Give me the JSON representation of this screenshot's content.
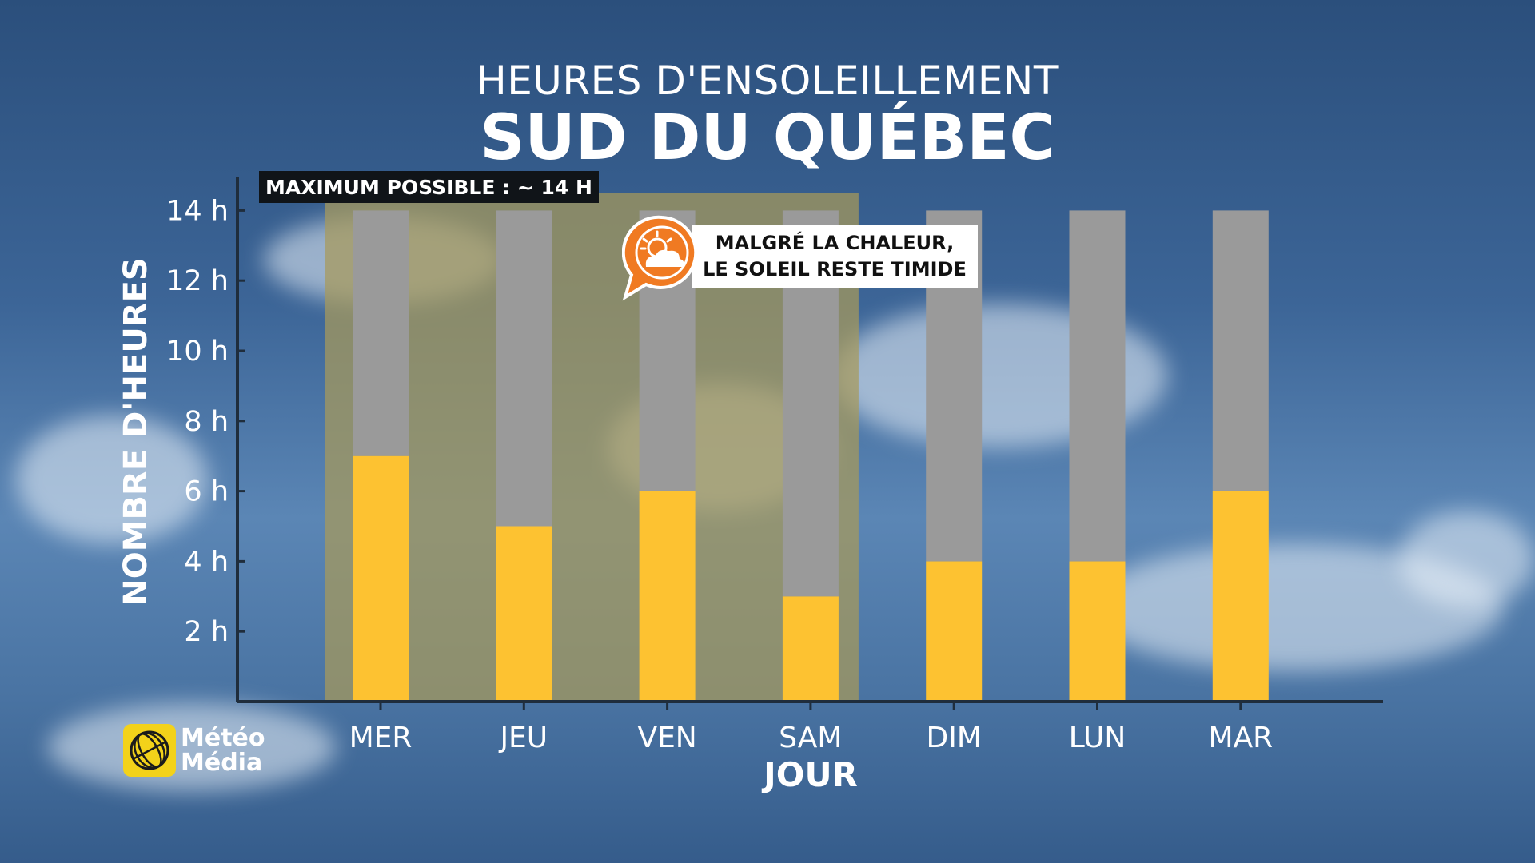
{
  "title_top": "HEURES D'ENSOLEILLEMENT",
  "title_main": "SUD DU QUÉBEC",
  "max_label": "MAXIMUM POSSIBLE : ~ 14 H",
  "annotation": {
    "line1": "MALGRÉ LA CHALEUR,",
    "line2": "LE SOLEIL RESTE TIMIDE",
    "icon": "sun-behind-cloud-icon"
  },
  "logo": {
    "line1": "Météo",
    "line2": "Média",
    "icon": "globe-icon"
  },
  "colors": {
    "sun": "#fdc231",
    "max": "#9a9a9a",
    "highlight": "#a89a5a",
    "badge": "#f07a22",
    "logo": "#f3d21a"
  },
  "chart_data": {
    "type": "bar",
    "stacked": true,
    "ylabel": "NOMBRE D'HEURES",
    "xlabel": "JOUR",
    "categories": [
      "MER",
      "JEU",
      "VEN",
      "SAM",
      "DIM",
      "LUN",
      "MAR"
    ],
    "series": [
      {
        "values": [
          7,
          5,
          6,
          3,
          4,
          4,
          6
        ],
        "color": "#fdc231"
      },
      {
        "values": [
          7,
          9,
          8,
          11,
          10,
          10,
          8
        ],
        "color": "#9a9a9a"
      }
    ],
    "total_possible": 14,
    "ylim": [
      0,
      14
    ],
    "yticks": [
      "2 h",
      "4 h",
      "6 h",
      "8 h",
      "10 h",
      "12 h",
      "14 h"
    ],
    "ytick_values": [
      2,
      4,
      6,
      8,
      10,
      12,
      14
    ],
    "highlight_categories": [
      "MER",
      "JEU",
      "VEN",
      "SAM"
    ],
    "grid": false
  }
}
